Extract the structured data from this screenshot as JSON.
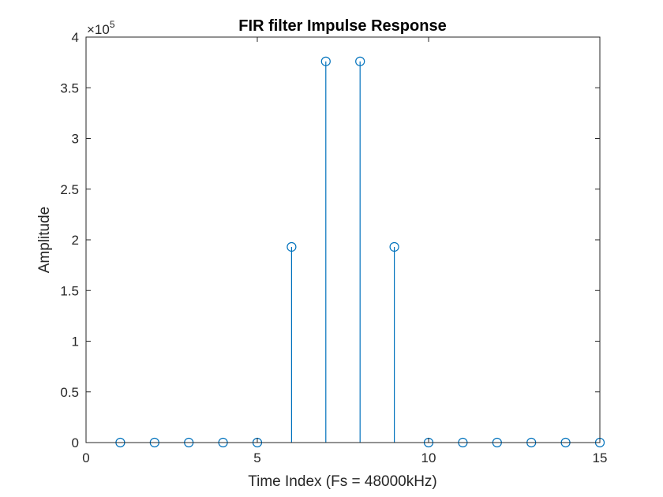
{
  "chart_data": {
    "type": "stem",
    "title": "FIR filter Impulse Response",
    "xlabel": "Time Index (Fs = 48000kHz)",
    "ylabel": "Amplitude",
    "xlim": [
      0,
      15
    ],
    "ylim": [
      0,
      400000
    ],
    "xticks": [
      0,
      5,
      10,
      15
    ],
    "yticks": [
      0,
      50000,
      100000,
      150000,
      200000,
      250000,
      300000,
      350000,
      400000
    ],
    "ytick_labels": [
      "0",
      "0.5",
      "1",
      "1.5",
      "2",
      "2.5",
      "3",
      "3.5",
      "4"
    ],
    "y_exponent_label": "×10",
    "y_exponent_power": "5",
    "x": [
      1,
      2,
      3,
      4,
      5,
      6,
      7,
      8,
      9,
      10,
      11,
      12,
      13,
      14,
      15
    ],
    "y": [
      0,
      0,
      0,
      0,
      0,
      193000,
      376000,
      376000,
      193000,
      0,
      0,
      0,
      0,
      0,
      0
    ],
    "marker": "circle",
    "grid": false,
    "color": "#0072BD",
    "axis_color": "#262626"
  }
}
